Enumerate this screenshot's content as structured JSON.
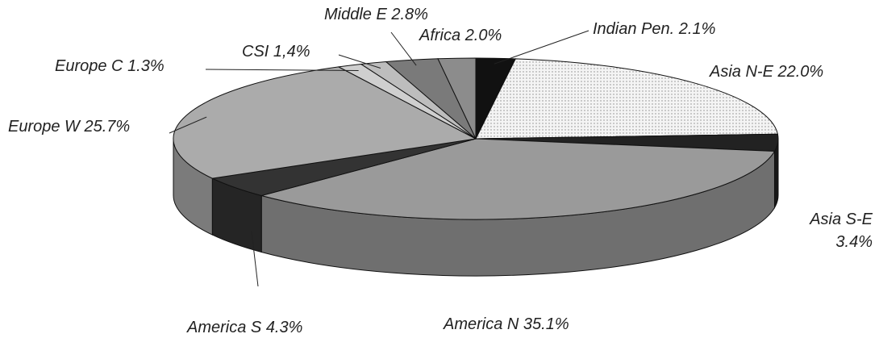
{
  "chart_data": {
    "type": "pie3d",
    "categories": [
      "Indian Pen.",
      "Asia N-E",
      "Asia S-E",
      "America N",
      "America S",
      "Europe W",
      "Europe C",
      "CSI",
      "Middle E",
      "Africa"
    ],
    "values": [
      2.1,
      22.0,
      3.4,
      35.1,
      4.3,
      25.7,
      1.3,
      1.4,
      2.8,
      2.0
    ],
    "value_labels": [
      "2.1%",
      "22.0%",
      "3.4%",
      "35.1%",
      "4.3%",
      "25.7%",
      "1.3%",
      "1,4%",
      "2.8%",
      "2.0%"
    ],
    "colors": [
      "#111111",
      "#eeeeee",
      "#222222",
      "#9a9a9a",
      "#333333",
      "#ababab",
      "#cfcfcf",
      "#bdbdbd",
      "#7a7a7a",
      "#8c8c8c"
    ]
  }
}
